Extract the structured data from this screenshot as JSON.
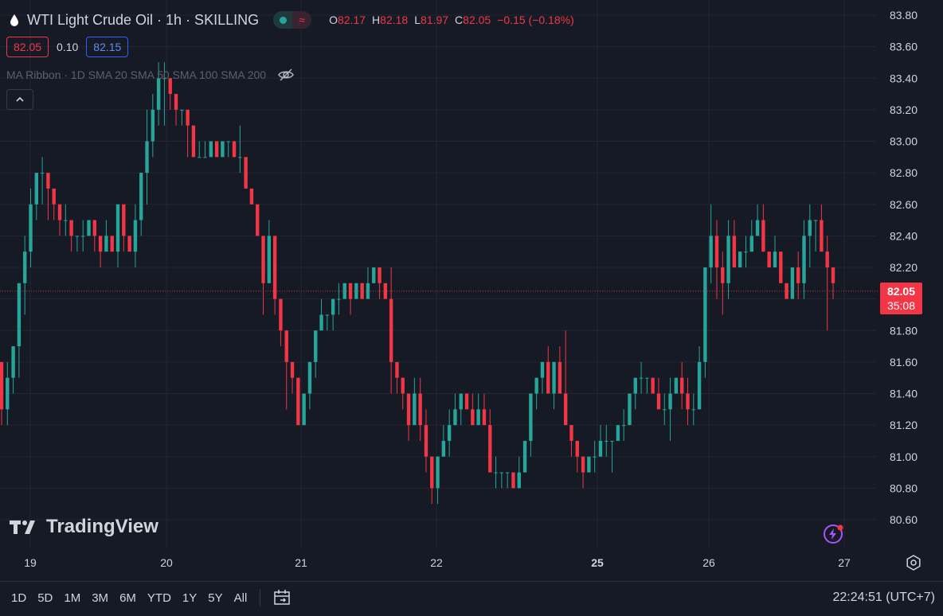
{
  "header": {
    "symbol_title": "WTI Light Crude Oil · 1h · SKILLING",
    "ohlc": [
      {
        "k": "O",
        "v": "82.17"
      },
      {
        "k": "H",
        "v": "82.18"
      },
      {
        "k": "L",
        "v": "81.97"
      },
      {
        "k": "C",
        "v": "82.05"
      }
    ],
    "change": "−0.15 (−0.18%)",
    "bid": "82.05",
    "spread": "0.10",
    "ask": "82.15",
    "status_right_glyph": "≈"
  },
  "indicator": {
    "label": "MA Ribbon · 1D SMA 20 SMA 50 SMA 100 SMA 200"
  },
  "current_price_tag": {
    "price": "82.05",
    "countdown": "35:08"
  },
  "logo_text": "TradingView",
  "bottombar": {
    "ranges": [
      "1D",
      "5D",
      "1M",
      "3M",
      "6M",
      "YTD",
      "1Y",
      "5Y",
      "All"
    ],
    "clock": "22:24:51 (UTC+7)"
  },
  "colors": {
    "background": "#161a25",
    "up": "#26a69a",
    "down": "#f23645",
    "grid": "#232632",
    "text": "#d1d4dc"
  },
  "chart_data": {
    "type": "candlestick",
    "y_ticks": [
      "83.80",
      "83.60",
      "83.40",
      "83.20",
      "83.00",
      "82.80",
      "82.60",
      "82.40",
      "82.20",
      "82.00",
      "81.80",
      "81.60",
      "81.40",
      "81.20",
      "81.00",
      "80.80",
      "80.60"
    ],
    "x_labels": [
      {
        "label": "19",
        "bold": false
      },
      {
        "label": "20",
        "bold": false
      },
      {
        "label": "21",
        "bold": false
      },
      {
        "label": "22",
        "bold": false
      },
      {
        "label": "25",
        "bold": true
      },
      {
        "label": "26",
        "bold": false
      },
      {
        "label": "27",
        "bold": false
      }
    ],
    "ylim": [
      80.6,
      83.8
    ],
    "current_price": 82.05,
    "candles": [
      [
        81.6,
        81.3,
        81.6,
        81.2
      ],
      [
        81.3,
        81.5,
        81.6,
        81.2
      ],
      [
        81.5,
        81.7,
        81.7,
        81.4
      ],
      [
        81.7,
        82.1,
        82.1,
        81.5
      ],
      [
        82.1,
        82.3,
        82.4,
        81.9
      ],
      [
        82.3,
        82.6,
        82.7,
        82.2
      ],
      [
        82.6,
        82.8,
        82.8,
        82.5
      ],
      [
        82.8,
        82.8,
        82.9,
        82.6
      ],
      [
        82.8,
        82.7,
        82.8,
        82.5
      ],
      [
        82.7,
        82.6,
        82.6,
        82.5
      ],
      [
        82.6,
        82.5,
        82.6,
        82.4
      ],
      [
        82.5,
        82.5,
        82.6,
        82.4
      ],
      [
        82.5,
        82.4,
        82.5,
        82.3
      ],
      [
        82.4,
        82.4,
        82.4,
        82.3
      ],
      [
        82.4,
        82.4,
        82.5,
        82.3
      ],
      [
        82.4,
        82.5,
        82.5,
        82.4
      ],
      [
        82.5,
        82.4,
        82.5,
        82.3
      ],
      [
        82.4,
        82.3,
        82.4,
        82.2
      ],
      [
        82.3,
        82.4,
        82.5,
        82.3
      ],
      [
        82.4,
        82.3,
        82.4,
        82.3
      ],
      [
        82.3,
        82.6,
        82.6,
        82.2
      ],
      [
        82.6,
        82.4,
        82.6,
        82.3
      ],
      [
        82.4,
        82.3,
        82.4,
        82.3
      ],
      [
        82.3,
        82.5,
        82.6,
        82.2
      ],
      [
        82.5,
        82.8,
        82.8,
        82.4
      ],
      [
        82.8,
        83.0,
        83.2,
        82.6
      ],
      [
        83.0,
        83.2,
        83.3,
        82.9
      ],
      [
        83.2,
        83.4,
        83.5,
        83.1
      ],
      [
        83.4,
        83.4,
        83.5,
        83.1
      ],
      [
        83.4,
        83.3,
        83.4,
        83.2
      ],
      [
        83.3,
        83.2,
        83.3,
        83.1
      ],
      [
        83.2,
        83.2,
        83.2,
        83.1
      ],
      [
        83.2,
        83.1,
        83.2,
        82.9
      ],
      [
        83.1,
        82.9,
        83.1,
        82.9
      ],
      [
        82.9,
        82.9,
        83.0,
        82.9
      ],
      [
        82.9,
        82.9,
        83.0,
        82.9
      ],
      [
        82.9,
        83.0,
        83.0,
        82.9
      ],
      [
        83.0,
        82.9,
        83.0,
        82.9
      ],
      [
        82.9,
        83.0,
        83.0,
        82.9
      ],
      [
        83.0,
        83.0,
        83.0,
        82.9
      ],
      [
        83.0,
        82.9,
        83.0,
        82.9
      ],
      [
        82.9,
        82.9,
        83.1,
        82.8
      ],
      [
        82.9,
        82.7,
        82.9,
        82.7
      ],
      [
        82.7,
        82.6,
        82.7,
        82.6
      ],
      [
        82.6,
        82.4,
        82.6,
        82.4
      ],
      [
        82.4,
        82.1,
        82.4,
        81.9
      ],
      [
        82.1,
        82.4,
        82.5,
        82.1
      ],
      [
        82.4,
        82.0,
        82.4,
        81.9
      ],
      [
        82.0,
        81.8,
        82.0,
        81.7
      ],
      [
        81.8,
        81.6,
        81.8,
        81.3
      ],
      [
        81.6,
        81.5,
        81.6,
        81.4
      ],
      [
        81.5,
        81.2,
        81.5,
        81.2
      ],
      [
        81.2,
        81.4,
        81.4,
        81.2
      ],
      [
        81.4,
        81.6,
        81.6,
        81.3
      ],
      [
        81.6,
        81.8,
        81.8,
        81.5
      ],
      [
        81.8,
        81.9,
        82.0,
        81.8
      ],
      [
        81.9,
        81.9,
        81.9,
        81.8
      ],
      [
        81.9,
        82.0,
        82.0,
        81.8
      ],
      [
        82.0,
        82.0,
        82.1,
        81.9
      ],
      [
        82.0,
        82.1,
        82.1,
        82.0
      ],
      [
        82.1,
        82.0,
        82.1,
        81.9
      ],
      [
        82.0,
        82.1,
        82.1,
        82.0
      ],
      [
        82.1,
        82.0,
        82.1,
        82.0
      ],
      [
        82.0,
        82.1,
        82.2,
        82.0
      ],
      [
        82.1,
        82.2,
        82.2,
        82.1
      ],
      [
        82.2,
        82.1,
        82.2,
        82.0
      ],
      [
        82.1,
        82.0,
        82.1,
        82.0
      ],
      [
        82.0,
        81.6,
        82.2,
        81.4
      ],
      [
        81.6,
        81.5,
        81.6,
        81.4
      ],
      [
        81.5,
        81.4,
        81.5,
        81.3
      ],
      [
        81.4,
        81.2,
        81.4,
        81.1
      ],
      [
        81.2,
        81.4,
        81.5,
        81.2
      ],
      [
        81.4,
        81.2,
        81.5,
        81.1
      ],
      [
        81.2,
        81.0,
        81.3,
        80.9
      ],
      [
        81.0,
        80.8,
        81.0,
        80.7
      ],
      [
        80.8,
        81.0,
        81.0,
        80.7
      ],
      [
        81.0,
        81.1,
        81.2,
        81.0
      ],
      [
        81.1,
        81.2,
        81.3,
        81.0
      ],
      [
        81.2,
        81.3,
        81.4,
        81.2
      ],
      [
        81.3,
        81.4,
        81.4,
        81.2
      ],
      [
        81.4,
        81.3,
        81.4,
        81.3
      ],
      [
        81.3,
        81.2,
        81.4,
        81.2
      ],
      [
        81.2,
        81.3,
        81.4,
        81.2
      ],
      [
        81.3,
        81.2,
        81.4,
        81.2
      ],
      [
        81.2,
        80.9,
        81.3,
        80.9
      ],
      [
        80.9,
        80.9,
        81.0,
        80.8
      ],
      [
        80.9,
        80.9,
        80.9,
        80.8
      ],
      [
        80.9,
        80.9,
        80.9,
        80.8
      ],
      [
        80.9,
        80.8,
        80.9,
        80.8
      ],
      [
        80.8,
        80.9,
        81.0,
        80.8
      ],
      [
        80.9,
        81.1,
        81.1,
        80.9
      ],
      [
        81.1,
        81.4,
        81.4,
        81.0
      ],
      [
        81.4,
        81.5,
        81.5,
        81.3
      ],
      [
        81.5,
        81.6,
        81.6,
        81.4
      ],
      [
        81.6,
        81.4,
        81.7,
        81.4
      ],
      [
        81.4,
        81.6,
        81.6,
        81.3
      ],
      [
        81.6,
        81.4,
        81.7,
        81.4
      ],
      [
        81.4,
        81.2,
        81.8,
        81.2
      ],
      [
        81.2,
        81.1,
        81.2,
        81.0
      ],
      [
        81.1,
        81.0,
        81.1,
        80.9
      ],
      [
        81.0,
        80.9,
        81.0,
        80.8
      ],
      [
        80.9,
        81.0,
        81.0,
        80.9
      ],
      [
        81.0,
        81.0,
        81.1,
        80.9
      ],
      [
        81.0,
        81.1,
        81.2,
        81.0
      ],
      [
        81.1,
        81.1,
        81.2,
        81.0
      ],
      [
        81.1,
        81.1,
        81.1,
        80.9
      ],
      [
        81.1,
        81.2,
        81.2,
        81.1
      ],
      [
        81.2,
        81.2,
        81.3,
        81.1
      ],
      [
        81.2,
        81.4,
        81.4,
        81.2
      ],
      [
        81.4,
        81.5,
        81.5,
        81.3
      ],
      [
        81.5,
        81.5,
        81.6,
        81.4
      ],
      [
        81.5,
        81.5,
        81.5,
        81.4
      ],
      [
        81.5,
        81.4,
        81.5,
        81.4
      ],
      [
        81.4,
        81.3,
        81.5,
        81.3
      ],
      [
        81.3,
        81.3,
        81.4,
        81.2
      ],
      [
        81.3,
        81.4,
        81.5,
        81.1
      ],
      [
        81.4,
        81.5,
        81.5,
        81.4
      ],
      [
        81.5,
        81.4,
        81.6,
        81.3
      ],
      [
        81.4,
        81.3,
        81.5,
        81.2
      ],
      [
        81.3,
        81.3,
        81.4,
        81.2
      ],
      [
        81.3,
        81.6,
        81.7,
        81.3
      ],
      [
        81.6,
        82.2,
        82.2,
        81.5
      ],
      [
        82.2,
        82.4,
        82.6,
        82.1
      ],
      [
        82.4,
        82.2,
        82.5,
        82.0
      ],
      [
        82.2,
        82.1,
        82.3,
        81.9
      ],
      [
        82.1,
        82.4,
        82.5,
        82.0
      ],
      [
        82.4,
        82.2,
        82.5,
        82.2
      ],
      [
        82.2,
        82.3,
        82.3,
        82.2
      ],
      [
        82.3,
        82.3,
        82.4,
        82.2
      ],
      [
        82.3,
        82.4,
        82.5,
        82.3
      ],
      [
        82.4,
        82.5,
        82.6,
        82.4
      ],
      [
        82.5,
        82.3,
        82.6,
        82.3
      ],
      [
        82.3,
        82.2,
        82.3,
        82.2
      ],
      [
        82.2,
        82.3,
        82.4,
        82.2
      ],
      [
        82.3,
        82.1,
        82.3,
        82.1
      ],
      [
        82.1,
        82.0,
        82.1,
        82.0
      ],
      [
        82.0,
        82.2,
        82.2,
        82.0
      ],
      [
        82.2,
        82.1,
        82.3,
        82.0
      ],
      [
        82.1,
        82.4,
        82.5,
        82.0
      ],
      [
        82.4,
        82.5,
        82.6,
        82.2
      ],
      [
        82.5,
        82.5,
        82.5,
        82.3
      ],
      [
        82.5,
        82.3,
        82.6,
        82.3
      ],
      [
        82.3,
        82.2,
        82.4,
        81.8
      ],
      [
        82.2,
        82.1,
        82.2,
        82.0
      ]
    ]
  }
}
